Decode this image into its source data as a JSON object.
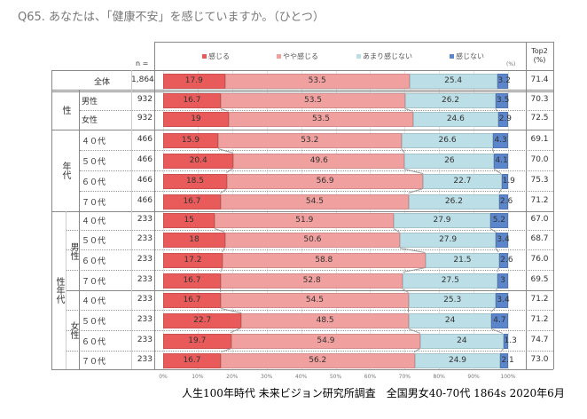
{
  "title": "Q65. あなたは、「健康不安」を感じていますか。（ひとつ）",
  "footer": "人生100年時代 未来ビジョン研究所調査　全国男女40-70代 1864s  2020年6月",
  "chart_data": {
    "type": "bar",
    "orientation": "horizontal",
    "stacked": true,
    "unit_label": "(%)",
    "n_header": "n =",
    "top2_header": "Top2\n(%)",
    "xlim": [
      0,
      100
    ],
    "ticks": [
      "0%",
      "10%",
      "20%",
      "30%",
      "40%",
      "50%",
      "60%",
      "70%",
      "80%",
      "90%",
      "100%"
    ],
    "grid": true,
    "legend_position": "top",
    "series": [
      {
        "name": "感じる",
        "color": "#e85b5a"
      },
      {
        "name": "やや感じる",
        "color": "#f0a09e"
      },
      {
        "name": "あまり感じない",
        "color": "#bcdee6"
      },
      {
        "name": "感じない",
        "color": "#5b86cc"
      }
    ],
    "groups": [
      {
        "label": "",
        "subgroups": [
          {
            "label": "",
            "rows": [
              0
            ]
          }
        ]
      },
      {
        "label": "性",
        "subgroups": [
          {
            "label": "",
            "rows": [
              1,
              2
            ]
          }
        ]
      },
      {
        "label": "年代",
        "subgroups": [
          {
            "label": "",
            "rows": [
              3,
              4,
              5,
              6
            ]
          }
        ]
      },
      {
        "label": "性年代",
        "subgroups": [
          {
            "label": "男性",
            "rows": [
              7,
              8,
              9,
              10
            ]
          },
          {
            "label": "女性",
            "rows": [
              11,
              12,
              13,
              14
            ]
          }
        ]
      }
    ],
    "rows": [
      {
        "label": "全体",
        "n": "1,864",
        "values": [
          17.9,
          53.5,
          25.4,
          3.2
        ],
        "top2": "71.4"
      },
      {
        "label": "男性",
        "n": "932",
        "values": [
          16.7,
          53.5,
          26.2,
          3.5
        ],
        "top2": "70.3"
      },
      {
        "label": "女性",
        "n": "932",
        "values": [
          19.0,
          53.5,
          24.6,
          2.9
        ],
        "top2": "72.5"
      },
      {
        "label": "４０代",
        "n": "466",
        "values": [
          15.9,
          53.2,
          26.6,
          4.3
        ],
        "top2": "69.1"
      },
      {
        "label": "５０代",
        "n": "466",
        "values": [
          20.4,
          49.6,
          26.0,
          4.1
        ],
        "top2": "70.0"
      },
      {
        "label": "６０代",
        "n": "466",
        "values": [
          18.5,
          56.9,
          22.7,
          1.9
        ],
        "top2": "75.3"
      },
      {
        "label": "７０代",
        "n": "466",
        "values": [
          16.7,
          54.5,
          26.2,
          2.6
        ],
        "top2": "71.2"
      },
      {
        "label": "４０代",
        "n": "233",
        "values": [
          15.0,
          51.9,
          27.9,
          5.2
        ],
        "top2": "67.0"
      },
      {
        "label": "５０代",
        "n": "233",
        "values": [
          18.0,
          50.6,
          27.9,
          3.4
        ],
        "top2": "68.7"
      },
      {
        "label": "６０代",
        "n": "233",
        "values": [
          17.2,
          58.8,
          21.5,
          2.6
        ],
        "top2": "76.0"
      },
      {
        "label": "７０代",
        "n": "233",
        "values": [
          16.7,
          52.8,
          27.5,
          3.0
        ],
        "top2": "69.5"
      },
      {
        "label": "４０代",
        "n": "233",
        "values": [
          16.7,
          54.5,
          25.3,
          3.4
        ],
        "top2": "71.2"
      },
      {
        "label": "５０代",
        "n": "233",
        "values": [
          22.7,
          48.5,
          24.0,
          4.7
        ],
        "top2": "71.2"
      },
      {
        "label": "６０代",
        "n": "233",
        "values": [
          19.7,
          54.9,
          24.0,
          1.3
        ],
        "top2": "74.7"
      },
      {
        "label": "７０代",
        "n": "233",
        "values": [
          16.7,
          56.2,
          24.9,
          2.1
        ],
        "top2": "73.0"
      }
    ]
  }
}
